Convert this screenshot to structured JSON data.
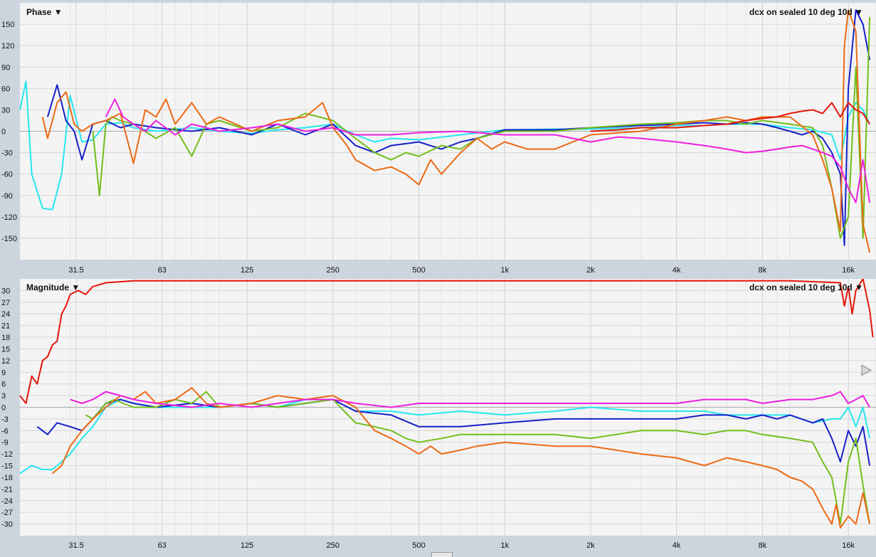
{
  "colors": {
    "cyan": "#27e6ee",
    "blue": "#1620c8",
    "green": "#72be1c",
    "orange": "#ec6a16",
    "magenta": "#ee1ee0",
    "red": "#e5160a",
    "plot_bg": "#f4f4f4",
    "axis_bg": "#ccd4de"
  },
  "chart_data": [
    {
      "type": "line",
      "title": "Phase",
      "dropdown_icon": "triangle-down-icon",
      "context_label": "dcx on sealed 10 deg 10d",
      "x_scale": "log",
      "xlim": [
        20,
        20000
      ],
      "ylim": [
        -180,
        180
      ],
      "grid": true,
      "x_ticks": [
        "31.5",
        "63",
        "125",
        "250",
        "500",
        "1k",
        "2k",
        "4k",
        "8k",
        "16k"
      ],
      "x_tick_values": [
        31.5,
        63,
        125,
        250,
        500,
        1000,
        2000,
        4000,
        8000,
        16000
      ],
      "y_ticks": [
        "150",
        "120",
        "90",
        "60",
        "30",
        "0",
        "-30",
        "-60",
        "-90",
        "-120",
        "-150"
      ],
      "y_tick_values": [
        150,
        120,
        90,
        60,
        30,
        0,
        -30,
        -60,
        -90,
        -120,
        -150
      ],
      "series": [
        {
          "color": "cyan",
          "x": [
            20,
            21,
            22,
            24,
            26,
            28,
            30,
            33,
            36,
            40,
            45,
            50,
            60,
            80,
            100,
            130,
            160,
            200,
            250,
            300,
            350,
            400,
            500,
            700,
            1000,
            1500,
            2000,
            3000,
            4000,
            5000,
            6000,
            7000,
            8000,
            10000,
            12000,
            14000,
            15000,
            16000,
            17000,
            18000,
            19000
          ],
          "y": [
            30,
            70,
            -60,
            -108,
            -110,
            -60,
            50,
            -15,
            -12,
            10,
            12,
            5,
            0,
            5,
            0,
            -3,
            2,
            5,
            10,
            -5,
            -15,
            -10,
            -12,
            -5,
            2,
            3,
            3,
            5,
            8,
            8,
            10,
            10,
            10,
            5,
            2,
            -5,
            -40,
            20,
            40,
            30,
            10
          ]
        },
        {
          "color": "blue",
          "x": [
            25,
            27,
            29,
            31,
            33,
            36,
            40,
            45,
            50,
            60,
            80,
            100,
            130,
            160,
            200,
            250,
            300,
            350,
            400,
            500,
            600,
            700,
            800,
            1000,
            1500,
            2000,
            3000,
            4000,
            5000,
            6000,
            7000,
            8000,
            9000,
            10000,
            11000,
            12000,
            13000,
            14000,
            15000,
            15500,
            16000,
            17000,
            18000,
            19000
          ],
          "y": [
            20,
            65,
            15,
            0,
            -40,
            10,
            15,
            5,
            10,
            5,
            0,
            5,
            -5,
            10,
            -5,
            10,
            -20,
            -30,
            -20,
            -15,
            -25,
            -15,
            -10,
            2,
            2,
            5,
            8,
            10,
            12,
            10,
            12,
            10,
            5,
            0,
            -5,
            0,
            -10,
            -30,
            -60,
            -160,
            60,
            170,
            150,
            100
          ]
        },
        {
          "color": "green",
          "x": [
            36,
            38,
            40,
            42,
            45,
            50,
            60,
            70,
            80,
            90,
            100,
            130,
            160,
            200,
            250,
            300,
            350,
            400,
            450,
            500,
            600,
            700,
            800,
            1000,
            1500,
            2000,
            3000,
            4000,
            5000,
            6000,
            7000,
            8000,
            10000,
            12000,
            13000,
            14000,
            15000,
            16000,
            17000,
            18000,
            19000
          ],
          "y": [
            0,
            -90,
            10,
            20,
            15,
            10,
            -10,
            5,
            -35,
            10,
            15,
            0,
            5,
            25,
            15,
            -10,
            -30,
            -40,
            -30,
            -35,
            -20,
            -25,
            -10,
            0,
            0,
            5,
            10,
            12,
            15,
            15,
            10,
            15,
            10,
            5,
            -20,
            -80,
            -150,
            -120,
            90,
            -150,
            160
          ]
        },
        {
          "color": "orange",
          "x": [
            24,
            25,
            27,
            29,
            31,
            33,
            36,
            40,
            45,
            50,
            55,
            60,
            65,
            70,
            80,
            90,
            100,
            130,
            160,
            200,
            230,
            250,
            280,
            300,
            350,
            400,
            450,
            500,
            550,
            600,
            700,
            800,
            900,
            1000,
            1200,
            1500,
            2000,
            3000,
            4000,
            5000,
            6000,
            7000,
            8000,
            10000,
            12000,
            13000,
            14000,
            15000,
            15500,
            16000,
            17000,
            18000,
            19000
          ],
          "y": [
            20,
            -10,
            40,
            55,
            10,
            0,
            10,
            15,
            25,
            -45,
            30,
            20,
            45,
            10,
            40,
            10,
            20,
            0,
            15,
            20,
            40,
            5,
            -20,
            -40,
            -55,
            -50,
            -60,
            -75,
            -40,
            -60,
            -30,
            -10,
            -25,
            -15,
            -25,
            -25,
            -5,
            0,
            10,
            15,
            20,
            15,
            20,
            20,
            -5,
            -40,
            -80,
            -140,
            120,
            170,
            140,
            -130,
            -170
          ]
        },
        {
          "color": "magenta",
          "x": [
            40,
            43,
            46,
            50,
            55,
            60,
            70,
            80,
            90,
            100,
            130,
            160,
            200,
            250,
            300,
            400,
            500,
            700,
            1000,
            1500,
            2000,
            2500,
            3000,
            4000,
            5000,
            6000,
            7000,
            8000,
            9000,
            10000,
            11000,
            12000,
            13000,
            14000,
            15000,
            16000,
            17000,
            18000,
            19000
          ],
          "y": [
            20,
            45,
            20,
            10,
            0,
            15,
            -5,
            10,
            5,
            0,
            5,
            10,
            0,
            5,
            -5,
            -5,
            -2,
            0,
            -5,
            -5,
            -15,
            -8,
            -10,
            -15,
            -20,
            -25,
            -30,
            -28,
            -25,
            -22,
            -20,
            -25,
            -30,
            -35,
            -50,
            -80,
            -100,
            -40,
            -100
          ]
        },
        {
          "color": "red",
          "x": [
            2000,
            2500,
            3000,
            4000,
            5000,
            6000,
            7000,
            8000,
            9000,
            10000,
            11000,
            12000,
            13000,
            14000,
            15000,
            16000,
            17000,
            18000,
            19000
          ],
          "y": [
            0,
            2,
            5,
            5,
            8,
            10,
            15,
            18,
            20,
            25,
            28,
            30,
            25,
            40,
            20,
            40,
            30,
            25,
            10
          ]
        }
      ]
    },
    {
      "type": "line",
      "title": "Magnitude",
      "dropdown_icon": "triangle-down-icon",
      "context_label": "dcx on sealed 10 deg 10d",
      "x_scale": "log",
      "xlim": [
        20,
        20000
      ],
      "ylim": [
        -33,
        33
      ],
      "grid": true,
      "x_ticks": [
        "31.5",
        "63",
        "125",
        "250",
        "500",
        "1k",
        "2k",
        "4k",
        "8k",
        "16k"
      ],
      "x_tick_values": [
        31.5,
        63,
        125,
        250,
        500,
        1000,
        2000,
        4000,
        8000,
        16000
      ],
      "y_ticks": [
        "30",
        "27",
        "24",
        "21",
        "18",
        "15",
        "12",
        "9",
        "6",
        "3",
        "0",
        "-3",
        "-6",
        "-9",
        "-12",
        "-15",
        "-18",
        "-21",
        "-24",
        "-27",
        "-30"
      ],
      "y_tick_values": [
        30,
        27,
        24,
        21,
        18,
        15,
        12,
        9,
        6,
        3,
        0,
        -3,
        -6,
        -9,
        -12,
        -15,
        -18,
        -21,
        -24,
        -27,
        -30
      ],
      "series": [
        {
          "color": "red",
          "x": [
            20,
            21,
            22,
            23,
            24,
            25,
            26,
            27,
            28,
            29,
            30,
            32,
            34,
            36,
            40,
            50,
            100,
            1000,
            10000,
            15000,
            15500,
            16000,
            16500,
            17000,
            18000,
            19000,
            19500
          ],
          "y": [
            3,
            1,
            8,
            6,
            12,
            13,
            16,
            17,
            24,
            26,
            29,
            30,
            29,
            31,
            32,
            32.5,
            32.5,
            32.5,
            32.5,
            32,
            26,
            31,
            24,
            30,
            33,
            25,
            18
          ]
        },
        {
          "color": "cyan",
          "x": [
            20,
            22,
            24,
            26,
            28,
            30,
            33,
            36,
            40,
            45,
            50,
            60,
            80,
            100,
            130,
            160,
            200,
            250,
            300,
            400,
            500,
            700,
            1000,
            1500,
            2000,
            3000,
            4000,
            5000,
            6000,
            7000,
            8000,
            10000,
            12000,
            14000,
            15000,
            16000,
            17000,
            18000,
            19000
          ],
          "y": [
            -17,
            -15,
            -16,
            -16,
            -14,
            -12,
            -8,
            -5,
            0,
            2,
            1,
            0,
            0,
            0,
            1,
            0,
            2,
            2,
            -1,
            -1,
            -2,
            -1,
            -2,
            -1,
            0,
            -1,
            -1,
            -1,
            -2,
            -2,
            -2,
            -2,
            -4,
            -3,
            -3,
            0,
            -5,
            0,
            -8
          ]
        },
        {
          "color": "blue",
          "x": [
            23,
            25,
            27,
            30,
            33,
            36,
            40,
            45,
            50,
            60,
            80,
            100,
            130,
            160,
            200,
            250,
            300,
            400,
            500,
            700,
            1000,
            1500,
            2000,
            3000,
            4000,
            5000,
            6000,
            7000,
            8000,
            9000,
            10000,
            12000,
            13000,
            14000,
            15000,
            16000,
            17000,
            18000,
            19000
          ],
          "y": [
            -5,
            -7,
            -4,
            -5,
            -6,
            -3,
            1,
            2,
            1,
            0,
            1,
            0,
            1,
            0,
            1,
            2,
            -1,
            -2,
            -5,
            -5,
            -4,
            -3,
            -3,
            -3,
            -3,
            -2,
            -2,
            -3,
            -2,
            -3,
            -2,
            -4,
            -3,
            -8,
            -14,
            -6,
            -10,
            -5,
            -15
          ]
        },
        {
          "color": "green",
          "x": [
            34,
            36,
            38,
            40,
            43,
            46,
            50,
            60,
            70,
            80,
            90,
            100,
            130,
            160,
            200,
            250,
            300,
            350,
            400,
            450,
            500,
            600,
            700,
            800,
            1000,
            1500,
            2000,
            3000,
            4000,
            5000,
            6000,
            7000,
            8000,
            10000,
            12000,
            13000,
            14000,
            15000,
            16000,
            17000,
            18000,
            19000
          ],
          "y": [
            -2,
            -3,
            -1,
            1,
            2,
            1,
            0,
            0,
            2,
            1,
            4,
            0,
            1,
            0,
            1,
            2,
            -4,
            -5,
            -6,
            -8,
            -9,
            -8,
            -7,
            -7,
            -7,
            -7,
            -8,
            -6,
            -6,
            -7,
            -6,
            -6,
            -7,
            -8,
            -9,
            -14,
            -18,
            -30,
            -14,
            -8,
            -20,
            -30
          ]
        },
        {
          "color": "orange",
          "x": [
            26,
            28,
            30,
            33,
            36,
            40,
            45,
            50,
            55,
            60,
            70,
            80,
            90,
            100,
            130,
            160,
            200,
            250,
            300,
            350,
            400,
            450,
            500,
            550,
            600,
            700,
            800,
            1000,
            1500,
            2000,
            3000,
            4000,
            5000,
            6000,
            7000,
            8000,
            9000,
            10000,
            11000,
            12000,
            13000,
            14000,
            14500,
            15000,
            16000,
            17000,
            18000,
            19000
          ],
          "y": [
            -17,
            -15,
            -10,
            -6,
            -3,
            0,
            3,
            2,
            4,
            1,
            2,
            5,
            1,
            0,
            1,
            3,
            2,
            3,
            0,
            -6,
            -8,
            -10,
            -12,
            -10,
            -12,
            -11,
            -10,
            -9,
            -10,
            -10,
            -12,
            -13,
            -15,
            -13,
            -14,
            -15,
            -16,
            -18,
            -19,
            -21,
            -26,
            -30,
            -25,
            -31,
            -28,
            -30,
            -22,
            -30
          ]
        },
        {
          "color": "magenta",
          "x": [
            30,
            33,
            36,
            40,
            45,
            50,
            60,
            80,
            100,
            130,
            160,
            200,
            250,
            300,
            400,
            500,
            700,
            1000,
            1500,
            2000,
            3000,
            4000,
            5000,
            6000,
            7000,
            8000,
            10000,
            12000,
            14000,
            15000,
            16000,
            17000,
            18000,
            19000
          ],
          "y": [
            2,
            1,
            2,
            4,
            3,
            2,
            1,
            0,
            1,
            0,
            1,
            2,
            2,
            1,
            0,
            1,
            1,
            1,
            1,
            1,
            1,
            1,
            2,
            2,
            2,
            1,
            2,
            2,
            3,
            4,
            1,
            2,
            3,
            0
          ]
        }
      ]
    }
  ]
}
